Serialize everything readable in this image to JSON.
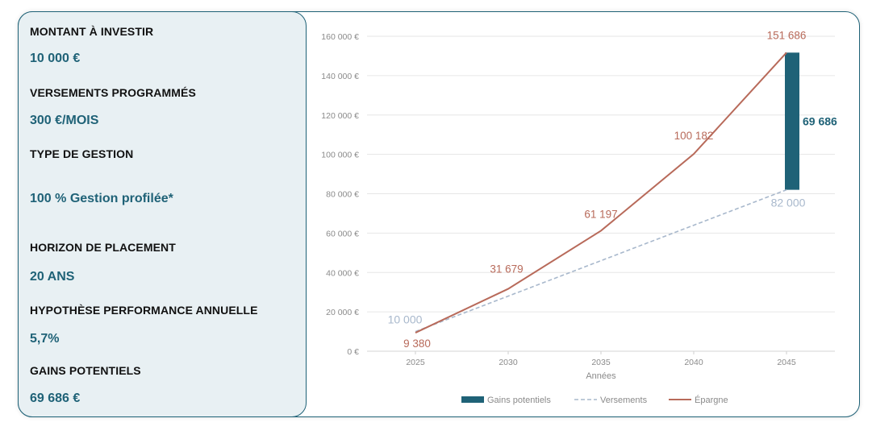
{
  "colors": {
    "accent": "#1f6277",
    "savings_line": "#b86a5a",
    "payments_line": "#a8b8cc",
    "panel_bg": "#e8f0f3"
  },
  "sidebar": {
    "items": [
      {
        "label": "MONTANT À INVESTIR",
        "value": "10 000 €"
      },
      {
        "label": "VERSEMENTS PROGRAMMÉS",
        "value": "300 €/MOIS"
      },
      {
        "label": "TYPE DE GESTION",
        "value": "100 % Gestion profilée*"
      },
      {
        "label": "HORIZON DE PLACEMENT",
        "value": "20 ANS"
      },
      {
        "label": "HYPOTHÈSE PERFORMANCE ANNUELLE",
        "value": "5,7%"
      },
      {
        "label": "GAINS POTENTIELS",
        "value": "69 686 €"
      }
    ]
  },
  "chart_data": {
    "type": "line",
    "xlabel": "Années",
    "ylabel": "",
    "ylim": [
      0,
      160000
    ],
    "grid": true,
    "legend_position": "bottom",
    "y_tick_labels": [
      "0 €",
      "20 000 €",
      "40 000 €",
      "60 000 €",
      "80 000 €",
      "100 000 €",
      "120 000 €",
      "140 000 €",
      "160 000 €"
    ],
    "y_tick_values": [
      0,
      20000,
      40000,
      60000,
      80000,
      100000,
      120000,
      140000,
      160000
    ],
    "x_tick_labels": [
      "2025",
      "2030",
      "2035",
      "2040",
      "2045"
    ],
    "x_values": [
      2025,
      2030,
      2035,
      2040,
      2045
    ],
    "series": [
      {
        "name": "Épargne",
        "values": [
          9380,
          31679,
          61197,
          100182,
          151686
        ],
        "labels": [
          "9 380",
          "31 679",
          "61 197",
          "100 182",
          "151 686"
        ]
      },
      {
        "name": "Versements",
        "values": [
          10000,
          28000,
          46000,
          64000,
          82000
        ],
        "labels": [
          "10 000",
          "",
          "",
          "",
          "82 000"
        ]
      },
      {
        "name": "Gains potentiels",
        "x": 2045,
        "from": 82000,
        "to": 151686,
        "label": "69 686"
      }
    ],
    "legend": [
      "Gains potentiels",
      "Versements",
      "Épargne"
    ]
  }
}
